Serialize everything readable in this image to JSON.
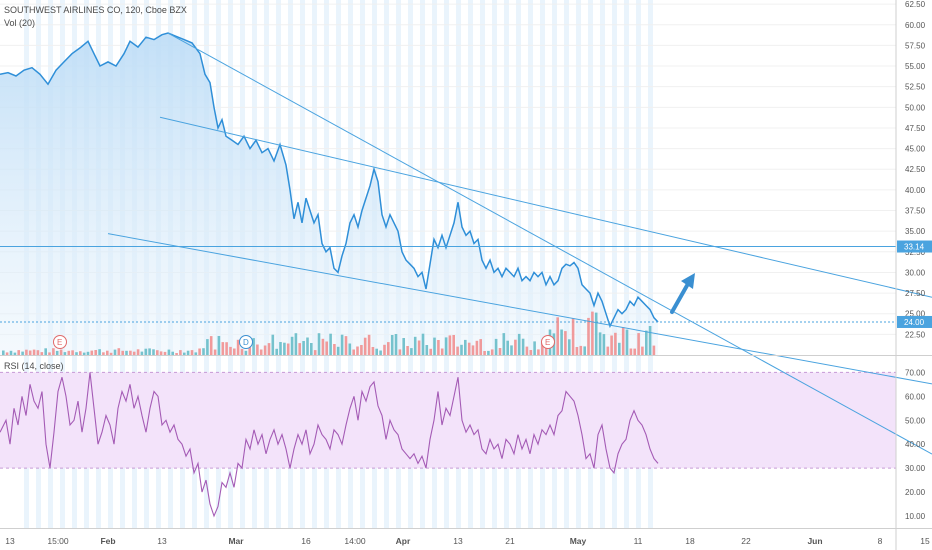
{
  "header": {
    "symbol_line": "SOUTHWEST AIRLINES CO, 120, Cboe BZX",
    "volume_label": "Vol (20)",
    "rsi_label": "RSI (14, close)"
  },
  "colors": {
    "price_line": "#2f8fd8",
    "price_fill": "#d6eafb",
    "trendline": "#4aa3df",
    "vol_up": "#5fb8c4",
    "vol_down": "#f08a8a",
    "rsi_line": "#a45bb5",
    "rsi_band": "#f3e3fa",
    "arrow": "#3a8fd1",
    "session_band": "#eaf4fc"
  },
  "chart_data": [
    {
      "type": "line",
      "title": "SOUTHWEST AIRLINES CO, 120, Cboe BZX",
      "y_ticks": [
        "62.50",
        "60.00",
        "57.50",
        "55.00",
        "52.50",
        "50.00",
        "47.50",
        "45.00",
        "42.50",
        "40.00",
        "37.50",
        "35.00",
        "32.50",
        "30.00",
        "27.50",
        "25.00",
        "22.50"
      ],
      "ylim": [
        20.0,
        63.0
      ],
      "price_labels": [
        {
          "text": "33.14",
          "value": 33.14
        },
        {
          "text": "24.00",
          "value": 24.0
        }
      ],
      "x_ticks": [
        "13",
        "15:00",
        "Feb",
        "13",
        "Mar",
        "16",
        "14:00",
        "Apr",
        "13",
        "21",
        "May",
        "11",
        "18",
        "22",
        "Jun",
        "8",
        "15"
      ],
      "earnings_markers": [
        "E",
        "D",
        "E"
      ],
      "close_series": [
        [
          0,
          54.0
        ],
        [
          8,
          54.2
        ],
        [
          16,
          53.8
        ],
        [
          24,
          54.5
        ],
        [
          32,
          54.8
        ],
        [
          40,
          54.0
        ],
        [
          48,
          52.8
        ],
        [
          56,
          54.5
        ],
        [
          64,
          55.5
        ],
        [
          72,
          56.5
        ],
        [
          80,
          57.2
        ],
        [
          88,
          58.0
        ],
        [
          94,
          56.5
        ],
        [
          100,
          55.0
        ],
        [
          108,
          55.5
        ],
        [
          116,
          55.0
        ],
        [
          124,
          56.5
        ],
        [
          130,
          58.0
        ],
        [
          138,
          57.3
        ],
        [
          146,
          58.5
        ],
        [
          154,
          58.2
        ],
        [
          162,
          58.8
        ],
        [
          168,
          59.0
        ],
        [
          176,
          58.6
        ],
        [
          184,
          58.2
        ],
        [
          192,
          57.8
        ],
        [
          200,
          56.5
        ],
        [
          205,
          54.0
        ],
        [
          210,
          53.0
        ],
        [
          214,
          50.0
        ],
        [
          218,
          47.5
        ],
        [
          222,
          48.5
        ],
        [
          226,
          46.5
        ],
        [
          232,
          46.0
        ],
        [
          238,
          45.5
        ],
        [
          244,
          46.5
        ],
        [
          250,
          45.0
        ],
        [
          256,
          46.0
        ],
        [
          262,
          44.5
        ],
        [
          268,
          45.0
        ],
        [
          274,
          43.5
        ],
        [
          280,
          45.5
        ],
        [
          286,
          43.0
        ],
        [
          290,
          40.0
        ],
        [
          294,
          36.5
        ],
        [
          298,
          38.5
        ],
        [
          302,
          36.0
        ],
        [
          306,
          39.0
        ],
        [
          310,
          37.5
        ],
        [
          314,
          36.0
        ],
        [
          318,
          37.0
        ],
        [
          322,
          33.5
        ],
        [
          326,
          32.5
        ],
        [
          330,
          33.0
        ],
        [
          334,
          30.5
        ],
        [
          338,
          30.0
        ],
        [
          342,
          32.0
        ],
        [
          346,
          33.5
        ],
        [
          350,
          36.0
        ],
        [
          354,
          37.0
        ],
        [
          358,
          35.5
        ],
        [
          362,
          37.5
        ],
        [
          366,
          39.0
        ],
        [
          370,
          40.5
        ],
        [
          374,
          42.5
        ],
        [
          378,
          41.0
        ],
        [
          382,
          37.0
        ],
        [
          386,
          35.5
        ],
        [
          390,
          37.0
        ],
        [
          394,
          36.0
        ],
        [
          398,
          35.0
        ],
        [
          402,
          32.5
        ],
        [
          406,
          31.5
        ],
        [
          410,
          31.0
        ],
        [
          414,
          30.5
        ],
        [
          418,
          29.5
        ],
        [
          422,
          30.0
        ],
        [
          426,
          28.0
        ],
        [
          430,
          31.0
        ],
        [
          434,
          34.0
        ],
        [
          438,
          33.0
        ],
        [
          442,
          34.5
        ],
        [
          446,
          33.0
        ],
        [
          450,
          34.5
        ],
        [
          454,
          36.0
        ],
        [
          458,
          38.5
        ],
        [
          462,
          35.5
        ],
        [
          466,
          34.5
        ],
        [
          470,
          35.0
        ],
        [
          474,
          33.5
        ],
        [
          478,
          34.0
        ],
        [
          482,
          31.5
        ],
        [
          486,
          30.5
        ],
        [
          490,
          31.5
        ],
        [
          494,
          30.0
        ],
        [
          498,
          30.5
        ],
        [
          502,
          29.5
        ],
        [
          506,
          30.5
        ],
        [
          510,
          30.0
        ],
        [
          514,
          29.5
        ],
        [
          518,
          30.5
        ],
        [
          522,
          29.0
        ],
        [
          526,
          29.5
        ],
        [
          530,
          29.0
        ],
        [
          534,
          30.0
        ],
        [
          538,
          29.5
        ],
        [
          542,
          30.0
        ],
        [
          546,
          28.5
        ],
        [
          550,
          29.5
        ],
        [
          554,
          28.5
        ],
        [
          558,
          29.0
        ],
        [
          562,
          30.5
        ],
        [
          566,
          31.0
        ],
        [
          570,
          30.8
        ],
        [
          574,
          31.2
        ],
        [
          578,
          30.5
        ],
        [
          582,
          28.5
        ],
        [
          586,
          28.0
        ],
        [
          590,
          27.5
        ],
        [
          594,
          26.0
        ],
        [
          598,
          27.5
        ],
        [
          602,
          26.5
        ],
        [
          606,
          25.0
        ],
        [
          610,
          23.5
        ],
        [
          614,
          24.5
        ],
        [
          618,
          25.5
        ],
        [
          622,
          25.0
        ],
        [
          626,
          25.5
        ],
        [
          630,
          26.5
        ],
        [
          634,
          26.0
        ],
        [
          638,
          27.0
        ],
        [
          642,
          26.5
        ],
        [
          646,
          26.0
        ],
        [
          650,
          25.5
        ],
        [
          654,
          24.5
        ],
        [
          658,
          24.0
        ]
      ],
      "trendlines": [
        {
          "from": [
            168,
            59.0
          ],
          "to": [
            932,
            8.0
          ]
        },
        {
          "from": [
            160,
            48.8
          ],
          "to": [
            932,
            27.0
          ]
        },
        {
          "from": [
            108,
            34.7
          ],
          "to": [
            932,
            16.5
          ]
        }
      ],
      "horizontal_levels": [
        33.14,
        24.0
      ]
    },
    {
      "type": "bar",
      "title": "Vol (20)",
      "bar_count": 170,
      "up_color": "#5fb8c4",
      "down_color": "#f08a8a"
    },
    {
      "type": "line",
      "title": "RSI (14, close)",
      "y_ticks": [
        "70.00",
        "60.00",
        "50.00",
        "40.00",
        "30.00",
        "20.00",
        "10.00"
      ],
      "ylim": [
        5,
        76
      ],
      "band": [
        30,
        70
      ],
      "series": [
        [
          0,
          45
        ],
        [
          6,
          50
        ],
        [
          10,
          40
        ],
        [
          14,
          55
        ],
        [
          18,
          48
        ],
        [
          22,
          60
        ],
        [
          26,
          52
        ],
        [
          30,
          65
        ],
        [
          34,
          58
        ],
        [
          38,
          55
        ],
        [
          42,
          62
        ],
        [
          46,
          40
        ],
        [
          50,
          30
        ],
        [
          54,
          45
        ],
        [
          58,
          62
        ],
        [
          62,
          68
        ],
        [
          66,
          60
        ],
        [
          70,
          48
        ],
        [
          74,
          50
        ],
        [
          78,
          58
        ],
        [
          82,
          45
        ],
        [
          86,
          55
        ],
        [
          90,
          70
        ],
        [
          94,
          55
        ],
        [
          98,
          40
        ],
        [
          102,
          45
        ],
        [
          106,
          52
        ],
        [
          110,
          48
        ],
        [
          114,
          40
        ],
        [
          118,
          55
        ],
        [
          122,
          62
        ],
        [
          126,
          58
        ],
        [
          130,
          65
        ],
        [
          134,
          55
        ],
        [
          138,
          60
        ],
        [
          142,
          52
        ],
        [
          146,
          45
        ],
        [
          150,
          55
        ],
        [
          154,
          62
        ],
        [
          158,
          60
        ],
        [
          162,
          48
        ],
        [
          166,
          50
        ],
        [
          170,
          45
        ],
        [
          174,
          48
        ],
        [
          178,
          42
        ],
        [
          182,
          40
        ],
        [
          186,
          35
        ],
        [
          190,
          38
        ],
        [
          194,
          28
        ],
        [
          198,
          32
        ],
        [
          202,
          20
        ],
        [
          206,
          25
        ],
        [
          210,
          15
        ],
        [
          214,
          10
        ],
        [
          218,
          14
        ],
        [
          222,
          24
        ],
        [
          226,
          22
        ],
        [
          230,
          28
        ],
        [
          234,
          22
        ],
        [
          238,
          32
        ],
        [
          242,
          30
        ],
        [
          246,
          42
        ],
        [
          250,
          38
        ],
        [
          254,
          46
        ],
        [
          258,
          40
        ],
        [
          262,
          44
        ],
        [
          266,
          36
        ],
        [
          270,
          42
        ],
        [
          274,
          46
        ],
        [
          278,
          40
        ],
        [
          282,
          44
        ],
        [
          286,
          38
        ],
        [
          290,
          30
        ],
        [
          294,
          38
        ],
        [
          298,
          44
        ],
        [
          302,
          40
        ],
        [
          306,
          46
        ],
        [
          310,
          36
        ],
        [
          314,
          40
        ],
        [
          318,
          48
        ],
        [
          322,
          44
        ],
        [
          326,
          42
        ],
        [
          330,
          38
        ],
        [
          334,
          46
        ],
        [
          338,
          44
        ],
        [
          342,
          40
        ],
        [
          346,
          48
        ],
        [
          350,
          55
        ],
        [
          354,
          60
        ],
        [
          358,
          50
        ],
        [
          362,
          62
        ],
        [
          366,
          58
        ],
        [
          370,
          64
        ],
        [
          374,
          66
        ],
        [
          378,
          56
        ],
        [
          382,
          52
        ],
        [
          386,
          42
        ],
        [
          390,
          50
        ],
        [
          394,
          46
        ],
        [
          398,
          44
        ],
        [
          402,
          38
        ],
        [
          406,
          36
        ],
        [
          410,
          34
        ],
        [
          414,
          36
        ],
        [
          418,
          32
        ],
        [
          422,
          35
        ],
        [
          426,
          30
        ],
        [
          430,
          42
        ],
        [
          434,
          50
        ],
        [
          438,
          62
        ],
        [
          442,
          48
        ],
        [
          446,
          55
        ],
        [
          450,
          52
        ],
        [
          454,
          60
        ],
        [
          458,
          68
        ],
        [
          462,
          50
        ],
        [
          466,
          45
        ],
        [
          470,
          48
        ],
        [
          474,
          44
        ],
        [
          478,
          46
        ],
        [
          482,
          38
        ],
        [
          486,
          36
        ],
        [
          490,
          42
        ],
        [
          494,
          38
        ],
        [
          498,
          40
        ],
        [
          502,
          34
        ],
        [
          506,
          42
        ],
        [
          510,
          40
        ],
        [
          514,
          36
        ],
        [
          518,
          44
        ],
        [
          522,
          38
        ],
        [
          526,
          42
        ],
        [
          530,
          36
        ],
        [
          534,
          44
        ],
        [
          538,
          40
        ],
        [
          542,
          46
        ],
        [
          546,
          44
        ],
        [
          550,
          48
        ],
        [
          554,
          44
        ],
        [
          558,
          52
        ],
        [
          562,
          54
        ],
        [
          566,
          62
        ],
        [
          570,
          60
        ],
        [
          574,
          58
        ],
        [
          578,
          52
        ],
        [
          582,
          44
        ],
        [
          586,
          34
        ],
        [
          590,
          36
        ],
        [
          594,
          30
        ],
        [
          598,
          44
        ],
        [
          602,
          48
        ],
        [
          606,
          38
        ],
        [
          610,
          30
        ],
        [
          614,
          28
        ],
        [
          618,
          36
        ],
        [
          622,
          40
        ],
        [
          626,
          42
        ],
        [
          630,
          50
        ],
        [
          634,
          54
        ],
        [
          638,
          50
        ],
        [
          642,
          48
        ],
        [
          646,
          44
        ],
        [
          650,
          38
        ],
        [
          654,
          34
        ],
        [
          658,
          32
        ]
      ]
    }
  ]
}
